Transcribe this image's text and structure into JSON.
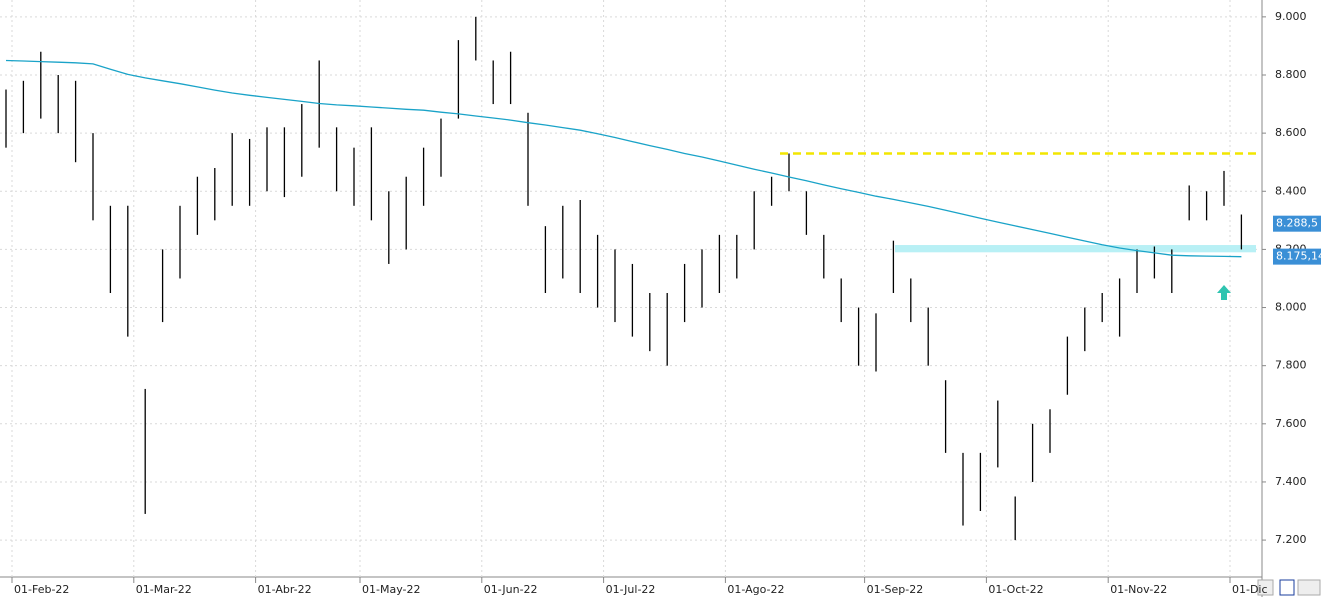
{
  "chart_data": {
    "type": "ohlc",
    "categories": [
      "01-Feb-22",
      null,
      null,
      null,
      null,
      null,
      null,
      "01-Mar-22",
      null,
      null,
      null,
      null,
      null,
      null,
      "01-Abr-22",
      null,
      null,
      null,
      null,
      null,
      "01-May-22",
      null,
      null,
      null,
      null,
      null,
      null,
      "01-Jun-22",
      null,
      null,
      null,
      null,
      null,
      null,
      "01-Jul-22",
      null,
      null,
      null,
      null,
      null,
      null,
      "01-Ago-22",
      null,
      null,
      null,
      null,
      null,
      null,
      null,
      "01-Sep-22",
      null,
      null,
      null,
      null,
      null,
      null,
      "01-Oct-22",
      null,
      null,
      null,
      null,
      null,
      null,
      "01-Nov-22",
      null,
      null,
      null,
      null,
      null,
      null,
      "01-Dic",
      null
    ],
    "high": [
      8750,
      8780,
      8880,
      8800,
      8780,
      8600,
      8350,
      8350,
      7720,
      8200,
      8350,
      8450,
      8480,
      8600,
      8580,
      8620,
      8620,
      8700,
      8850,
      8620,
      8550,
      8620,
      8400,
      8450,
      8550,
      8650,
      8920,
      9000,
      8850,
      8880,
      8670,
      8280,
      8350,
      8370,
      8250,
      8200,
      8150,
      8050,
      8050,
      8150,
      8200,
      8250,
      8250,
      8400,
      8450,
      8530,
      8400,
      8250,
      8100,
      8000,
      7980,
      8230,
      8100,
      8000,
      7750,
      7500,
      7500,
      7680,
      7350,
      7600,
      7650,
      7900,
      8000,
      8050,
      8100,
      8200,
      8210,
      8200,
      8420,
      8400,
      8470,
      8320
    ],
    "low": [
      8550,
      8600,
      8650,
      8600,
      8500,
      8300,
      8050,
      7900,
      7290,
      7950,
      8100,
      8250,
      8300,
      8350,
      8350,
      8400,
      8380,
      8450,
      8550,
      8400,
      8350,
      8300,
      8150,
      8200,
      8350,
      8450,
      8650,
      8850,
      8700,
      8700,
      8350,
      8050,
      8100,
      8050,
      8000,
      7950,
      7900,
      7850,
      7800,
      7950,
      8000,
      8050,
      8100,
      8200,
      8350,
      8400,
      8250,
      8100,
      7950,
      7800,
      7780,
      8050,
      7950,
      7800,
      7500,
      7250,
      7300,
      7450,
      7200,
      7400,
      7500,
      7700,
      7850,
      7950,
      7900,
      8050,
      8100,
      8050,
      8300,
      8300,
      8350,
      8200
    ],
    "bar_color": "#000000",
    "ma": [
      8850,
      8848,
      8846,
      8844,
      8842,
      8838,
      8820,
      8802,
      8790,
      8780,
      8770,
      8759,
      8748,
      8738,
      8730,
      8723,
      8716,
      8709,
      8702,
      8697,
      8694,
      8690,
      8686,
      8682,
      8679,
      8672,
      8666,
      8659,
      8652,
      8645,
      8636,
      8628,
      8619,
      8610,
      8598,
      8585,
      8571,
      8557,
      8544,
      8530,
      8518,
      8504,
      8490,
      8476,
      8463,
      8449,
      8436,
      8422,
      8409,
      8396,
      8383,
      8372,
      8360,
      8348,
      8335,
      8321,
      8307,
      8294,
      8281,
      8268,
      8255,
      8242,
      8229,
      8216,
      8205,
      8196,
      8188,
      8180,
      8178,
      8177,
      8176,
      8175
    ],
    "ma_color": "#1aa3c8",
    "resistance": {
      "value": 8530,
      "color": "#f2e600"
    },
    "support_band": {
      "values": [
        8190,
        8215
      ],
      "color": "#b8f0f5"
    },
    "signal_arrow": {
      "value": 8050,
      "color": "#2ec4b0"
    },
    "price_labels": [
      {
        "value": 8288.5,
        "label": "8.288,5",
        "color": "#3a8fd6"
      },
      {
        "value": 8175.14,
        "label": "8.175,14",
        "color": "#3a8fd6"
      }
    ],
    "ylim": [
      7073,
      9058
    ],
    "yticks": [
      {
        "value": 7200,
        "label": "7.200"
      },
      {
        "value": 7400,
        "label": "7.400"
      },
      {
        "value": 7600,
        "label": "7.600"
      },
      {
        "value": 7800,
        "label": "7.800"
      },
      {
        "value": 8000,
        "label": "8.000"
      },
      {
        "value": 8200,
        "label": "8.200"
      },
      {
        "value": 8400,
        "label": "8.400"
      },
      {
        "value": 8600,
        "label": "8.600"
      },
      {
        "value": 8800,
        "label": "8.800"
      },
      {
        "value": 9000,
        "label": "9.000"
      }
    ],
    "grid": true
  }
}
